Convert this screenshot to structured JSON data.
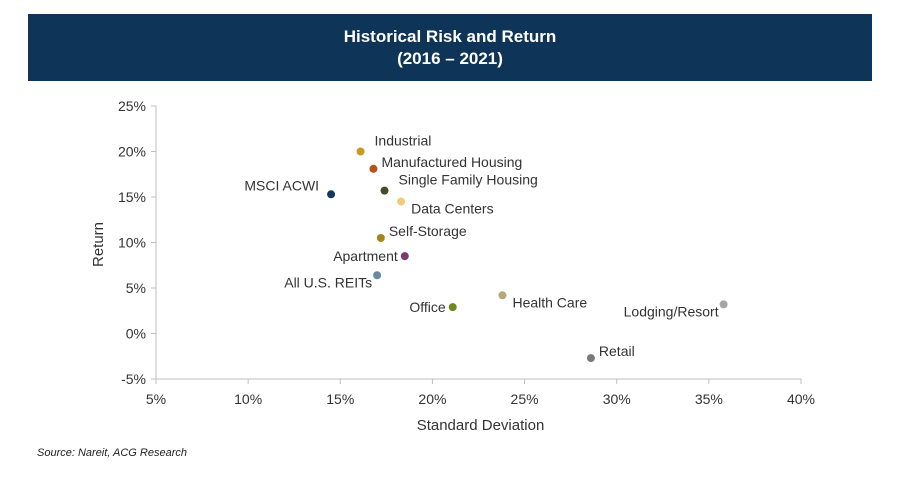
{
  "colors": {
    "banner": "#0e3558",
    "axis": "#bfbfbf",
    "text": "#333333"
  },
  "chart_data": {
    "type": "scatter",
    "title": "Historical Risk and Return",
    "subtitle": "(2016 – 2021)",
    "xlabel": "Standard Deviation",
    "ylabel": "Return",
    "xlim": [
      5,
      40
    ],
    "ylim": [
      -5,
      25
    ],
    "x_ticks": [
      5,
      10,
      15,
      20,
      25,
      30,
      35,
      40
    ],
    "x_tick_labels": [
      "5%",
      "10%",
      "15%",
      "20%",
      "25%",
      "30%",
      "35%",
      "40%"
    ],
    "y_ticks": [
      25,
      20,
      15,
      10,
      5,
      0,
      -5
    ],
    "y_tick_labels": [
      "25%",
      "20%",
      "15%",
      "10%",
      "5%",
      "0%",
      "-5%"
    ],
    "grid": false,
    "points": [
      {
        "label": "Industrial",
        "x": 16.1,
        "y": 20.0,
        "color": "#c49a2a",
        "label_side": "upper-right"
      },
      {
        "label": "Manufactured Housing",
        "x": 16.8,
        "y": 18.1,
        "color": "#b5531a",
        "label_side": "right"
      },
      {
        "label": "MSCI ACWI",
        "x": 14.5,
        "y": 15.3,
        "color": "#17375e",
        "label_side": "upper-left"
      },
      {
        "label": "Single Family Housing",
        "x": 17.4,
        "y": 15.7,
        "color": "#4a4a28",
        "label_side": "upper-right"
      },
      {
        "label": "Data Centers",
        "x": 18.3,
        "y": 14.5,
        "color": "#f0cc7a",
        "label_side": "lower-right"
      },
      {
        "label": "Self-Storage",
        "x": 17.2,
        "y": 10.5,
        "color": "#a68418",
        "label_side": "right"
      },
      {
        "label": "Apartment",
        "x": 18.5,
        "y": 8.5,
        "color": "#7b3a6e",
        "label_side": "left"
      },
      {
        "label": "All U.S. REITs",
        "x": 17.0,
        "y": 6.4,
        "color": "#6a8a9c",
        "label_side": "lower-left"
      },
      {
        "label": "Health Care",
        "x": 23.8,
        "y": 4.2,
        "color": "#b7a679",
        "label_side": "lower-right"
      },
      {
        "label": "Office",
        "x": 21.1,
        "y": 2.9,
        "color": "#6d8a1c",
        "label_side": "left"
      },
      {
        "label": "Lodging/Resort",
        "x": 35.8,
        "y": 3.2,
        "color": "#a5a5a5",
        "label_side": "lower-left"
      },
      {
        "label": "Retail",
        "x": 28.6,
        "y": -2.7,
        "color": "#7a7a7a",
        "label_side": "right"
      }
    ]
  },
  "source_text": "Source:  Nareit, ACG Research"
}
